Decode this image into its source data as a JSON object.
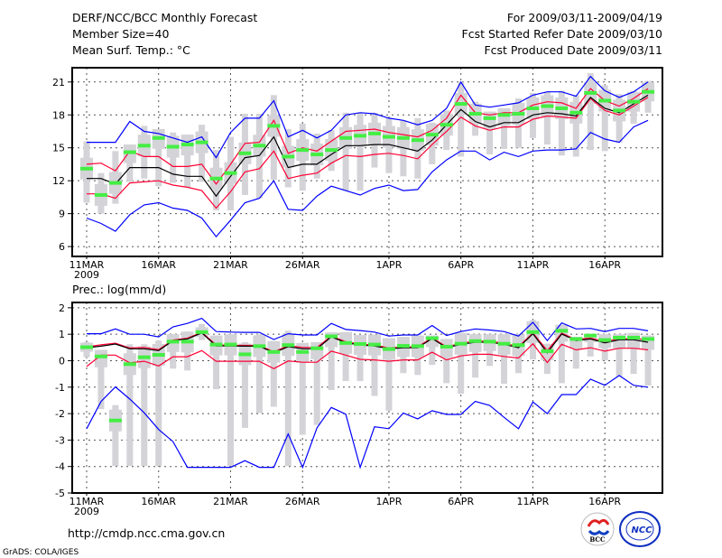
{
  "header": {
    "title": "DERF/NCC/BCC Monthly Forecast",
    "member_size": "Member Size=40",
    "variable": "Mean Surf. Temp.: °C",
    "period": "For 2009/03/11-2009/04/19",
    "started": "Fcst Started Refer Date 2009/03/10",
    "produced": "Fcst Produced Date 2009/03/11"
  },
  "footer": {
    "url": "http://cmdp.ncc.cma.gov.cn",
    "credit": "GrADS: COLA/IGES",
    "logo_bcc": "BCC",
    "logo_ncc": "NCC"
  },
  "colors": {
    "extreme": "#0000ff",
    "spread": "#ff0033",
    "mean": "#000000",
    "median": "#44ee44",
    "range": "#d3d3d8"
  },
  "chart_data": [
    {
      "type": "line",
      "title": "Mean Surf. Temp.: °C",
      "ylim": [
        5.1,
        22.3
      ],
      "yticks": [
        "21",
        "18",
        "15",
        "12",
        "9",
        "6"
      ],
      "ytick_values": [
        21,
        18,
        15,
        12,
        9,
        6
      ],
      "xticks": [
        "11MAR",
        "16MAR",
        "21MAR",
        "26MAR",
        "1APR",
        "6APR",
        "11APR",
        "16APR"
      ],
      "xtick_days": [
        0,
        5,
        10,
        15,
        21,
        26,
        31,
        36
      ],
      "year_label": "2009",
      "grid": true,
      "series": {
        "upper_extreme": [
          15.5,
          15.5,
          15.5,
          17.4,
          16.5,
          16.3,
          15.9,
          15.5,
          16.0,
          14.1,
          16.4,
          17.7,
          17.7,
          19.3,
          16.0,
          16.6,
          15.9,
          16.6,
          18.0,
          18.2,
          18.1,
          17.7,
          17.5,
          17.1,
          17.5,
          18.6,
          21.0,
          18.9,
          18.7,
          18.9,
          19.1,
          19.8,
          20.1,
          20.1,
          19.7,
          21.5,
          20.2,
          19.6,
          20.1,
          21.0
        ],
        "upper_spread": [
          13.5,
          13.6,
          12.9,
          14.7,
          14.2,
          14.2,
          13.3,
          13.3,
          13.5,
          11.7,
          13.5,
          15.4,
          15.5,
          17.5,
          14.5,
          15.0,
          14.7,
          15.6,
          16.5,
          16.6,
          16.7,
          16.4,
          16.2,
          16.0,
          16.6,
          17.7,
          19.8,
          18.2,
          18.0,
          18.2,
          18.2,
          18.9,
          19.2,
          19.1,
          18.6,
          20.4,
          19.3,
          18.8,
          19.5,
          20.4
        ],
        "mean": [
          12.2,
          12.2,
          11.7,
          13.2,
          13.2,
          13.2,
          12.6,
          12.4,
          12.4,
          10.6,
          12.4,
          14.1,
          14.3,
          16.0,
          13.2,
          13.5,
          13.5,
          14.4,
          15.2,
          15.2,
          15.3,
          15.3,
          15.0,
          14.7,
          15.7,
          17.1,
          18.5,
          17.4,
          16.9,
          17.3,
          17.3,
          18.0,
          18.2,
          18.1,
          17.9,
          19.6,
          18.6,
          18.2,
          19.0,
          19.8
        ],
        "lower_spread": [
          10.8,
          10.8,
          10.4,
          11.8,
          11.9,
          12.0,
          11.6,
          11.4,
          11.1,
          9.5,
          11.0,
          12.8,
          13.1,
          14.7,
          12.2,
          12.5,
          12.7,
          13.6,
          14.3,
          14.2,
          14.4,
          14.5,
          14.3,
          14.0,
          15.3,
          16.5,
          17.8,
          17.0,
          16.6,
          16.9,
          16.9,
          17.6,
          17.9,
          17.8,
          17.7,
          19.5,
          18.4,
          18.0,
          18.8,
          19.6
        ],
        "lower_extreme": [
          8.6,
          8.1,
          7.4,
          8.9,
          9.8,
          10.0,
          9.5,
          9.3,
          8.6,
          6.9,
          8.4,
          10.0,
          10.4,
          12.0,
          9.4,
          9.3,
          10.6,
          11.5,
          11.1,
          10.7,
          11.3,
          11.6,
          11.1,
          11.2,
          12.8,
          13.9,
          14.7,
          14.7,
          13.9,
          14.6,
          14.2,
          14.7,
          14.8,
          14.8,
          14.9,
          16.4,
          15.8,
          15.5,
          16.9,
          17.5
        ],
        "median": [
          13.1,
          10.7,
          11.8,
          14.6,
          15.2,
          15.9,
          15.1,
          15.3,
          15.5,
          12.2,
          12.7,
          14.5,
          15.2,
          17.0,
          14.2,
          14.8,
          14.4,
          14.8,
          15.9,
          16.1,
          16.3,
          16.0,
          15.9,
          15.7,
          16.2,
          17.1,
          19.0,
          18.1,
          17.7,
          18.0,
          18.1,
          18.6,
          18.8,
          18.6,
          18.2,
          20.0,
          19.3,
          18.4,
          19.2,
          20.1
        ],
        "range_max": [
          15.6,
          12.7,
          14.7,
          15.3,
          17.0,
          16.7,
          16.4,
          16.2,
          17.1,
          14.8,
          16.0,
          18.1,
          18.1,
          19.8,
          16.7,
          17.2,
          16.3,
          16.6,
          18.2,
          18.2,
          18.2,
          17.7,
          17.5,
          17.7,
          17.3,
          18.4,
          21.0,
          19.2,
          18.3,
          18.6,
          19.5,
          20.0,
          20.1,
          20.2,
          19.8,
          21.8,
          20.7,
          19.9,
          20.2,
          21.1
        ],
        "range_min": [
          10.0,
          9.0,
          9.9,
          11.9,
          12.2,
          11.5,
          11.8,
          11.4,
          11.9,
          9.3,
          9.3,
          10.7,
          10.4,
          12.1,
          11.4,
          11.1,
          12.2,
          12.9,
          11.1,
          11.1,
          13.2,
          12.7,
          12.4,
          12.2,
          13.5,
          14.8,
          14.2,
          16.1,
          14.4,
          14.9,
          15.0,
          15.9,
          15.3,
          14.3,
          14.2,
          14.8,
          14.7,
          15.5,
          17.2,
          18.2
        ]
      }
    },
    {
      "type": "line",
      "title": "Prec.: log(mm/d)",
      "ylim": [
        -5,
        2.2
      ],
      "yticks": [
        "2",
        "1",
        "0",
        "-1",
        "-2",
        "-3",
        "-4",
        "-5"
      ],
      "ytick_values": [
        2,
        1,
        0,
        -1,
        -2,
        -3,
        -4,
        -5
      ],
      "xticks": [
        "11MAR",
        "16MAR",
        "21MAR",
        "26MAR",
        "1APR",
        "6APR",
        "11APR",
        "16APR"
      ],
      "xtick_days": [
        0,
        5,
        10,
        15,
        21,
        26,
        31,
        36
      ],
      "year_label": "2009",
      "grid": true,
      "series": {
        "upper_extreme": [
          1.02,
          1.02,
          1.2,
          1.0,
          1.0,
          0.9,
          1.28,
          1.41,
          1.6,
          1.1,
          1.08,
          1.07,
          1.07,
          0.8,
          1.02,
          0.97,
          0.97,
          1.41,
          1.18,
          1.14,
          1.08,
          0.93,
          0.97,
          0.97,
          1.33,
          0.95,
          1.1,
          1.2,
          1.16,
          1.1,
          0.93,
          1.45,
          0.76,
          1.43,
          1.2,
          1.22,
          1.1,
          1.22,
          1.22,
          1.13
        ],
        "upper_spread": [
          0.52,
          0.6,
          0.66,
          0.48,
          0.5,
          0.42,
          0.78,
          0.85,
          1.07,
          0.6,
          0.58,
          0.58,
          0.58,
          0.33,
          0.57,
          0.5,
          0.5,
          0.93,
          0.72,
          0.62,
          0.6,
          0.48,
          0.52,
          0.52,
          0.87,
          0.52,
          0.66,
          0.74,
          0.74,
          0.66,
          0.53,
          1.05,
          0.38,
          1.04,
          0.8,
          0.86,
          0.72,
          0.83,
          0.83,
          0.8
        ],
        "mean": [
          0.49,
          0.55,
          0.63,
          0.45,
          0.45,
          0.38,
          0.76,
          0.82,
          1.05,
          0.56,
          0.56,
          0.55,
          0.55,
          0.3,
          0.53,
          0.45,
          0.45,
          0.9,
          0.68,
          0.59,
          0.56,
          0.45,
          0.49,
          0.49,
          0.84,
          0.49,
          0.62,
          0.7,
          0.7,
          0.62,
          0.49,
          1.02,
          0.3,
          1.01,
          0.76,
          0.82,
          0.67,
          0.79,
          0.79,
          0.7
        ],
        "lower_spread": [
          -0.22,
          0.21,
          0.21,
          -0.08,
          -0.02,
          -0.2,
          0.15,
          0.15,
          0.38,
          -0.02,
          -0.02,
          -0.02,
          -0.02,
          -0.3,
          -0.01,
          -0.06,
          -0.06,
          0.36,
          0.21,
          0.05,
          0.03,
          -0.02,
          0.03,
          0.03,
          0.32,
          0.03,
          0.18,
          0.24,
          0.24,
          0.16,
          0.1,
          0.64,
          -0.07,
          0.62,
          0.41,
          0.49,
          0.36,
          0.47,
          0.47,
          0.41
        ],
        "lower_extreme": [
          -2.57,
          -1.54,
          -0.99,
          -1.45,
          -1.97,
          -2.6,
          -3.06,
          -4.03,
          -4.03,
          -4.03,
          -4.03,
          -3.78,
          -4.03,
          -4.03,
          -2.77,
          -4.03,
          -2.54,
          -1.77,
          -2.02,
          -4.03,
          -2.5,
          -2.57,
          -1.98,
          -2.2,
          -1.89,
          -2.03,
          -2.03,
          -1.54,
          -1.69,
          -2.14,
          -2.57,
          -1.56,
          -2.0,
          -1.28,
          -1.28,
          -0.7,
          -0.93,
          -0.56,
          -0.93,
          -1.0
        ],
        "median": [
          0.51,
          0.16,
          -2.26,
          -0.13,
          0.13,
          0.22,
          0.72,
          0.72,
          1.08,
          0.61,
          0.61,
          0.24,
          0.55,
          0.33,
          0.59,
          0.33,
          0.47,
          0.92,
          0.67,
          0.63,
          0.61,
          0.44,
          0.56,
          0.55,
          0.85,
          0.53,
          0.64,
          0.74,
          0.72,
          0.64,
          0.59,
          1.08,
          0.36,
          1.13,
          0.82,
          0.95,
          0.78,
          0.87,
          0.87,
          0.82
        ],
        "range_max": [
          0.7,
          0.41,
          -1.68,
          0.62,
          0.62,
          0.76,
          1.0,
          1.1,
          1.39,
          0.95,
          1.0,
          0.7,
          1.0,
          0.74,
          1.13,
          0.67,
          0.7,
          1.07,
          1.08,
          0.97,
          0.99,
          0.85,
          0.9,
          0.95,
          0.95,
          0.82,
          1.05,
          1.0,
          1.0,
          1.0,
          1.0,
          1.54,
          0.64,
          1.36,
          0.9,
          1.0,
          1.0,
          1.0,
          1.05,
          0.95
        ],
        "range_min": [
          0.13,
          -1.83,
          -3.98,
          -3.98,
          -3.98,
          -3.98,
          -0.3,
          -0.37,
          0.78,
          -1.08,
          -3.98,
          -2.54,
          -1.98,
          -1.74,
          -3.98,
          -2.8,
          -2.43,
          -1.11,
          -0.77,
          -0.77,
          -1.33,
          -1.89,
          -0.47,
          -0.54,
          -0.16,
          -0.85,
          -1.25,
          -0.64,
          -0.2,
          -0.87,
          -0.47,
          0.05,
          -0.5,
          -0.85,
          -0.3,
          0.16,
          0.01,
          -0.59,
          -0.5,
          -0.94
        ]
      }
    }
  ]
}
